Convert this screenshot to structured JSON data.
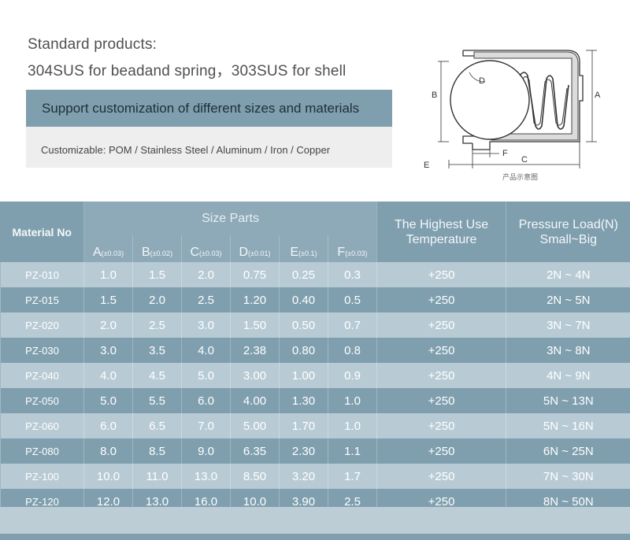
{
  "intro": {
    "line1": "Standard products:",
    "line2": "304SUS for beadand spring，303SUS for shell"
  },
  "banner": {
    "text": "Support customization of different sizes and materials"
  },
  "customizable": {
    "text": "Customizable: POM / Stainless Steel / Aluminum / Iron / Copper"
  },
  "diagram": {
    "labels": {
      "A": "A",
      "B": "B",
      "C": "C",
      "D": "D",
      "E": "E",
      "F": "F"
    },
    "caption": "产品示意图"
  },
  "table": {
    "material_header": "Material No",
    "size_header": "Size Parts",
    "temp_header": [
      "The Highest Use",
      "Temperature"
    ],
    "load_header": [
      "Pressure Load(N)",
      "Small~Big"
    ],
    "cols": [
      {
        "letter": "A",
        "tol": "(±0.03)"
      },
      {
        "letter": "B",
        "tol": "(±0.02)"
      },
      {
        "letter": "C",
        "tol": "(±0.03)"
      },
      {
        "letter": "D",
        "tol": "(±0.01)"
      },
      {
        "letter": "E",
        "tol": "(±0.1)"
      },
      {
        "letter": "F",
        "tol": "(±0.03)"
      }
    ],
    "rows": [
      [
        "PZ-010",
        "1.0",
        "1.5",
        "2.0",
        "0.75",
        "0.25",
        "0.3",
        "+250",
        "2N ~ 4N"
      ],
      [
        "PZ-015",
        "1.5",
        "2.0",
        "2.5",
        "1.20",
        "0.40",
        "0.5",
        "+250",
        "2N ~ 5N"
      ],
      [
        "PZ-020",
        "2.0",
        "2.5",
        "3.0",
        "1.50",
        "0.50",
        "0.7",
        "+250",
        "3N ~ 7N"
      ],
      [
        "PZ-030",
        "3.0",
        "3.5",
        "4.0",
        "2.38",
        "0.80",
        "0.8",
        "+250",
        "3N ~ 8N"
      ],
      [
        "PZ-040",
        "4.0",
        "4.5",
        "5.0",
        "3.00",
        "1.00",
        "0.9",
        "+250",
        "4N ~ 9N"
      ],
      [
        "PZ-050",
        "5.0",
        "5.5",
        "6.0",
        "4.00",
        "1.30",
        "1.0",
        "+250",
        "5N ~ 13N"
      ],
      [
        "PZ-060",
        "6.0",
        "6.5",
        "7.0",
        "5.00",
        "1.70",
        "1.0",
        "+250",
        "5N ~ 16N"
      ],
      [
        "PZ-080",
        "8.0",
        "8.5",
        "9.0",
        "6.35",
        "2.30",
        "1.1",
        "+250",
        "6N ~ 25N"
      ],
      [
        "PZ-100",
        "10.0",
        "11.0",
        "13.0",
        "8.50",
        "3.20",
        "1.7",
        "+250",
        "7N ~ 30N"
      ],
      [
        "PZ-120",
        "12.0",
        "13.0",
        "16.0",
        "10.0",
        "3.90",
        "2.5",
        "+250",
        "8N ~ 50N"
      ]
    ]
  }
}
